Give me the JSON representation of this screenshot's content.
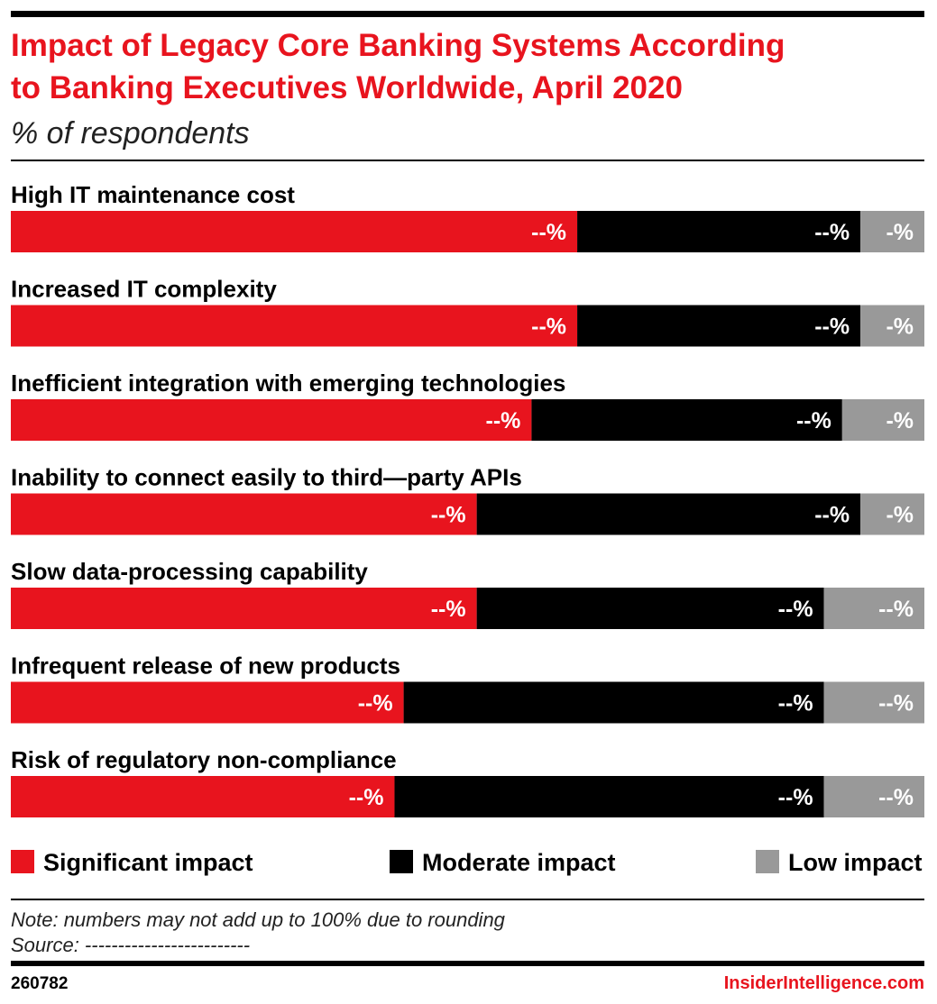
{
  "chart_data": {
    "type": "stacked-hbar",
    "title": "Impact of Legacy Core Banking Systems According to Banking Executives Worldwide, April 2020",
    "title_lines": [
      "Impact of Legacy Core Banking Systems According",
      "to Banking Executives Worldwide, April 2020"
    ],
    "subtitle": "% of respondents",
    "categories": [
      "High IT maintenance cost",
      "Increased IT complexity",
      "Inefficient integration with emerging technologies",
      "Inability to connect easily to third—party APIs",
      "Slow data-processing capability",
      "Infrequent release of new products",
      "Risk of regulatory non-compliance"
    ],
    "xlim": [
      0,
      100
    ],
    "series": [
      {
        "name": "Significant impact",
        "color": "#e8141e",
        "values": [
          62,
          62,
          57,
          51,
          51,
          43,
          42
        ],
        "value_labels": [
          "--%",
          "--%",
          "--%",
          "--%",
          "--%",
          "--%",
          "--%"
        ]
      },
      {
        "name": "Moderate impact",
        "color": "#000000",
        "values": [
          31,
          31,
          34,
          42,
          38,
          46,
          47
        ],
        "value_labels": [
          "--%",
          "--%",
          "--%",
          "--%",
          "--%",
          "--%",
          "--%"
        ]
      },
      {
        "name": "Low impact",
        "color": "#999999",
        "values": [
          7,
          7,
          9,
          7,
          11,
          11,
          11
        ],
        "value_labels": [
          "-%",
          "-%",
          "-%",
          "-%",
          "--%",
          "--%",
          "--%"
        ]
      }
    ],
    "note": "Note: numbers may not add up to 100% due to rounding",
    "source": "Source: -------------------------",
    "chart_id": "260782",
    "brand": "InsiderIntelligence.com"
  }
}
